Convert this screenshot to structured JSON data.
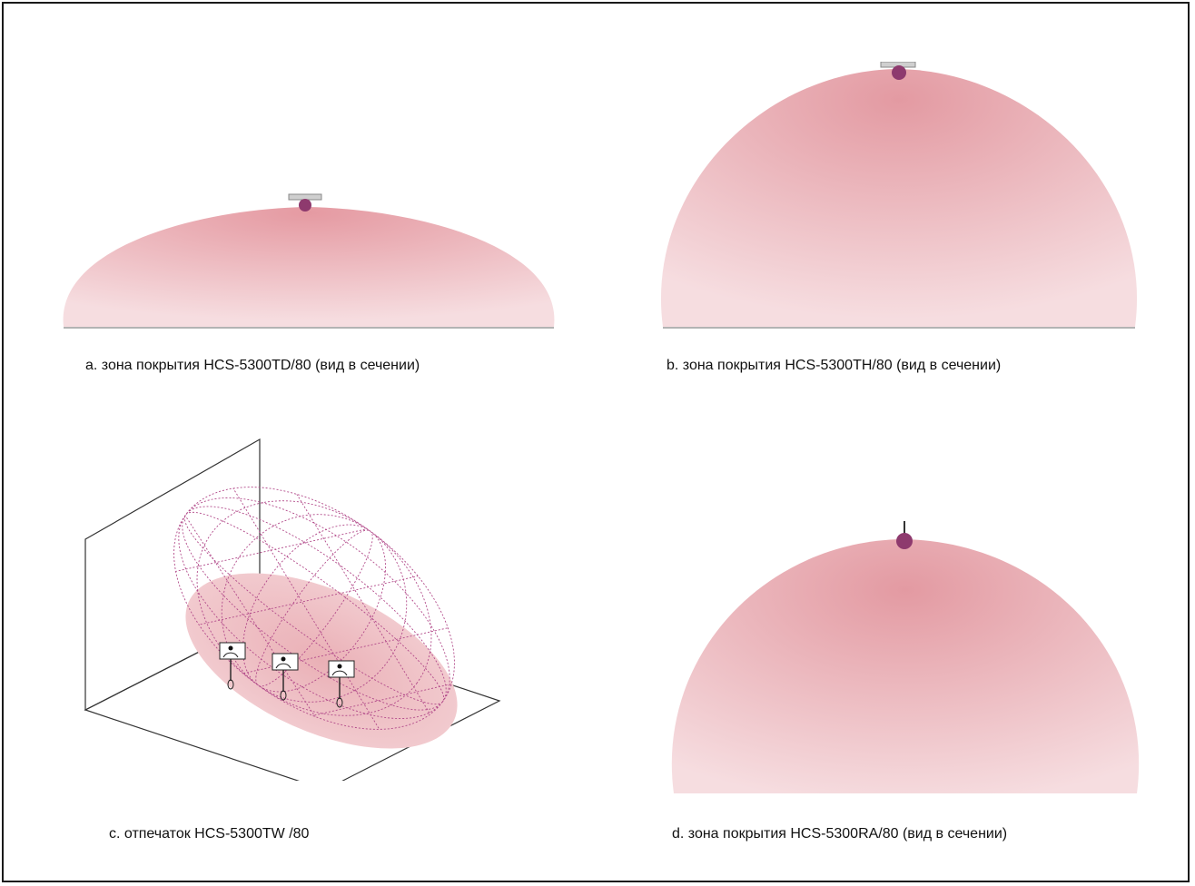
{
  "panels": {
    "a": {
      "caption": "a. зона покрытия HCS-5300TD/80 (вид в сечении)"
    },
    "b": {
      "caption": "b. зона покрытия HCS-5300TH/80 (вид в сечении)"
    },
    "c": {
      "caption": "c. отпечаток HCS-5300TW /80"
    },
    "d": {
      "caption": "d. зона покрытия HCS-5300RA/80 (вид в сечении)"
    }
  },
  "colors": {
    "coverage_fill": "#eaa3a8",
    "coverage_light": "#f6dde0",
    "device_purple": "#8e3a6e",
    "wireframe": "#b24a8a",
    "outline": "#333333"
  }
}
